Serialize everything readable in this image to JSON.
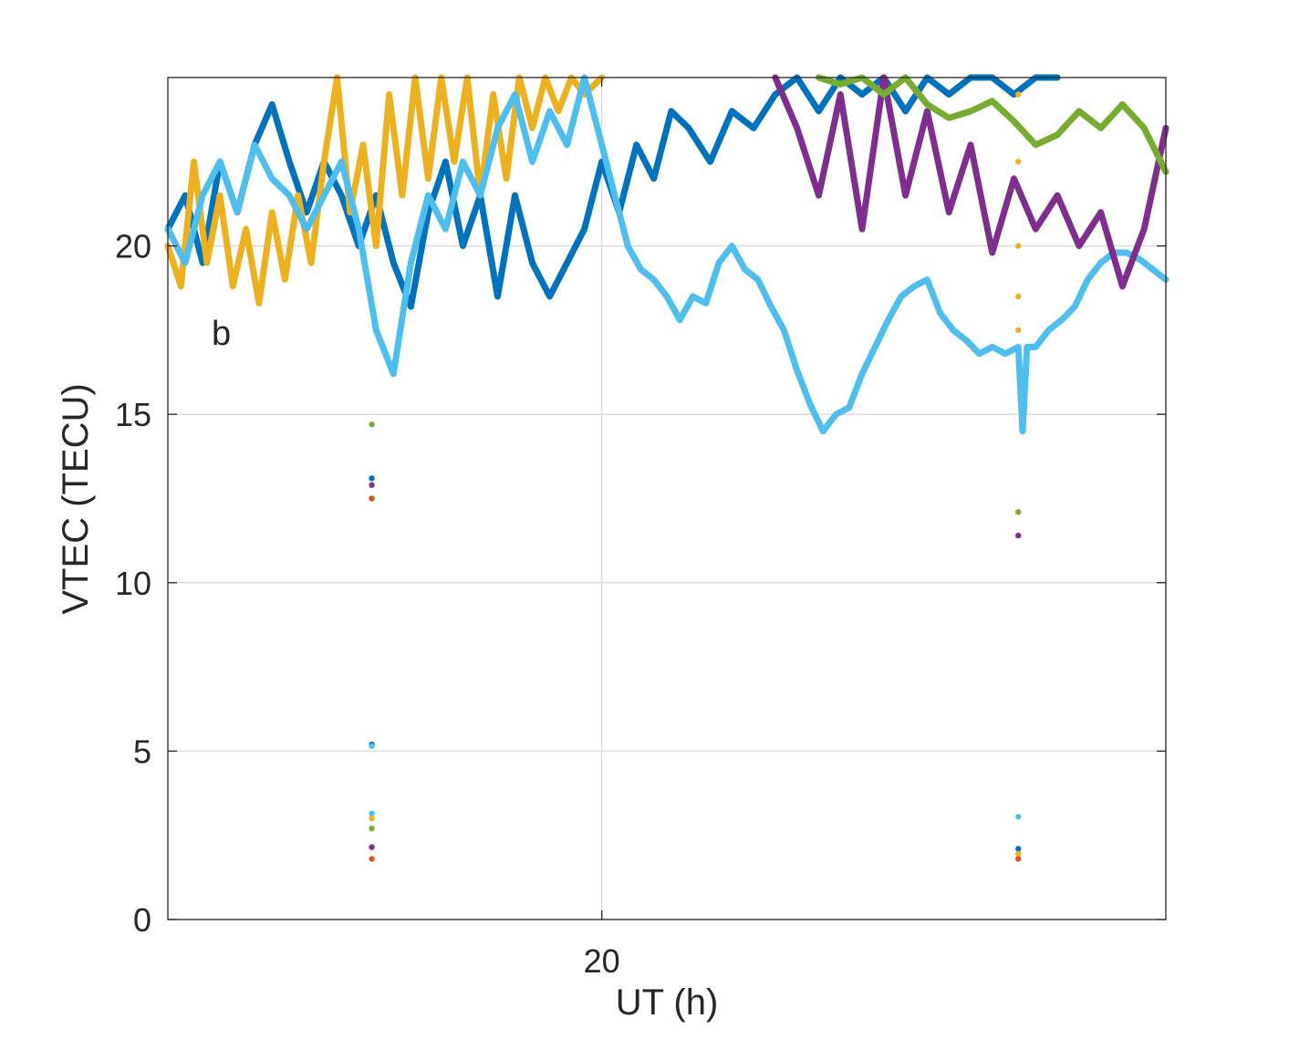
{
  "chart_data": {
    "type": "scatter",
    "title": "",
    "panel_label": "b",
    "xlabel": "UT (h)",
    "ylabel": "VTEC (TECU)",
    "xlim": [
      19,
      21.3
    ],
    "ylim": [
      0,
      25
    ],
    "x_ticks": [
      20
    ],
    "x_tick_labels": [
      "20"
    ],
    "y_ticks": [
      0,
      5,
      10,
      15,
      20
    ],
    "y_tick_labels": [
      "0",
      "5",
      "10",
      "15",
      "20"
    ],
    "grid": true,
    "colors": {
      "blue": "#0072BD",
      "orange": "#D95319",
      "yellow": "#EDB120",
      "purple": "#7E2F8E",
      "green": "#77AC30",
      "cyan": "#4DBEEE"
    },
    "series": [
      {
        "name": "blue",
        "color": "#0072BD",
        "x": [
          19.0,
          19.04,
          19.08,
          19.12,
          19.16,
          19.2,
          19.24,
          19.28,
          19.32,
          19.36,
          19.4,
          19.44,
          19.48,
          19.52,
          19.56,
          19.6,
          19.64,
          19.68,
          19.72,
          19.76,
          19.8,
          19.84,
          19.88,
          19.92,
          19.96,
          20.0,
          20.04,
          20.08,
          20.12,
          20.16,
          20.2,
          20.25,
          20.3,
          20.35,
          20.4,
          20.45,
          20.5,
          20.55,
          20.6,
          20.65,
          20.7,
          20.75,
          20.8,
          20.85,
          20.9,
          20.95,
          21.0,
          21.05
        ],
        "y": [
          20.5,
          21.5,
          19.5,
          22.5,
          21,
          23,
          24.2,
          22.5,
          21,
          22.5,
          21.5,
          20,
          21.5,
          19.5,
          18.2,
          21,
          22.5,
          20,
          21.5,
          18.5,
          21.5,
          19.5,
          18.5,
          19.5,
          20.5,
          22.5,
          21,
          23,
          22,
          24,
          23.5,
          22.5,
          24,
          23.5,
          24.5,
          25,
          24,
          25,
          24.5,
          25,
          24,
          25,
          24.5,
          25,
          25,
          24.5,
          25,
          25
        ]
      },
      {
        "name": "yellow",
        "color": "#EDB120",
        "x": [
          19.0,
          19.03,
          19.06,
          19.09,
          19.12,
          19.15,
          19.18,
          19.21,
          19.24,
          19.27,
          19.3,
          19.33,
          19.36,
          19.39,
          19.42,
          19.45,
          19.48,
          19.51,
          19.54,
          19.57,
          19.6,
          19.63,
          19.66,
          19.69,
          19.72,
          19.75,
          19.78,
          19.81,
          19.84,
          19.87,
          19.9,
          19.93,
          19.96,
          20.0
        ],
        "y": [
          20,
          18.8,
          22.5,
          19.5,
          21.5,
          18.8,
          20.5,
          18.3,
          21,
          19,
          21.5,
          19.5,
          22.5,
          25,
          21,
          23,
          20,
          24.5,
          21.5,
          25,
          22,
          25,
          22.5,
          25,
          21.5,
          24.5,
          22,
          25,
          23.5,
          25,
          24,
          25,
          24.5,
          25
        ]
      },
      {
        "name": "cyan",
        "color": "#4DBEEE",
        "x": [
          19.0,
          19.04,
          19.08,
          19.12,
          19.16,
          19.2,
          19.24,
          19.28,
          19.32,
          19.36,
          19.4,
          19.44,
          19.48,
          19.52,
          19.56,
          19.6,
          19.64,
          19.68,
          19.72,
          19.76,
          19.8,
          19.84,
          19.88,
          19.92,
          19.96,
          20.0,
          20.03,
          20.06,
          20.09,
          20.12,
          20.15,
          20.18,
          20.21,
          20.24,
          20.27,
          20.3,
          20.33,
          20.36,
          20.39,
          20.42,
          20.45,
          20.48,
          20.51,
          20.54,
          20.57,
          20.6,
          20.63,
          20.66,
          20.69,
          20.72,
          20.75,
          20.78,
          20.81,
          20.84,
          20.87,
          20.9,
          20.93,
          20.96,
          20.97,
          20.98,
          21.0,
          21.03,
          21.06,
          21.09,
          21.12,
          21.15,
          21.18,
          21.21,
          21.24,
          21.27,
          21.3
        ],
        "y": [
          20.5,
          19.5,
          21.5,
          22.5,
          21,
          23,
          22,
          21.5,
          20.5,
          21.5,
          22.5,
          20.5,
          17.5,
          16.2,
          19.5,
          21.5,
          20.5,
          22.5,
          21.5,
          23.5,
          24.5,
          22.5,
          24,
          23,
          25,
          23,
          21.5,
          20,
          19.3,
          19,
          18.5,
          17.8,
          18.5,
          18.3,
          19.5,
          20,
          19.3,
          19,
          18.2,
          17.5,
          16.3,
          15.3,
          14.5,
          15,
          15.2,
          16.2,
          17,
          17.8,
          18.5,
          18.8,
          19,
          18,
          17.5,
          17.2,
          16.8,
          17,
          16.8,
          17,
          14.5,
          17,
          17,
          17.5,
          17.8,
          18.2,
          19,
          19.5,
          19.8,
          19.8,
          19.6,
          19.3,
          19
        ]
      },
      {
        "name": "purple",
        "color": "#7E2F8E",
        "x": [
          20.4,
          20.45,
          20.5,
          20.55,
          20.6,
          20.65,
          20.7,
          20.75,
          20.8,
          20.85,
          20.9,
          20.95,
          21.0,
          21.05,
          21.1,
          21.15,
          21.2,
          21.25,
          21.3
        ],
        "y": [
          25,
          23.5,
          21.5,
          24.5,
          20.5,
          25,
          21.5,
          24,
          21,
          23,
          19.8,
          22,
          20.5,
          21.5,
          20,
          21,
          18.8,
          20.5,
          23.5
        ]
      },
      {
        "name": "green",
        "color": "#77AC30",
        "x": [
          20.5,
          20.55,
          20.6,
          20.65,
          20.7,
          20.75,
          20.8,
          20.85,
          20.9,
          20.95,
          21.0,
          21.05,
          21.1,
          21.15,
          21.2,
          21.25,
          21.3
        ],
        "y": [
          25,
          24.8,
          25,
          24.5,
          25,
          24.2,
          23.8,
          24,
          24.3,
          23.7,
          23,
          23.3,
          24,
          23.5,
          24.2,
          23.5,
          22.2
        ]
      }
    ],
    "outliers": [
      {
        "x": 19.47,
        "y": 14.7,
        "color": "#77AC30"
      },
      {
        "x": 19.47,
        "y": 13.1,
        "color": "#0072BD"
      },
      {
        "x": 19.47,
        "y": 12.9,
        "color": "#7E2F8E"
      },
      {
        "x": 19.47,
        "y": 12.5,
        "color": "#D95319"
      },
      {
        "x": 19.47,
        "y": 5.2,
        "color": "#0072BD"
      },
      {
        "x": 19.47,
        "y": 5.15,
        "color": "#4DBEEE"
      },
      {
        "x": 19.47,
        "y": 3.15,
        "color": "#4DBEEE"
      },
      {
        "x": 19.47,
        "y": 3.0,
        "color": "#EDB120"
      },
      {
        "x": 19.47,
        "y": 2.7,
        "color": "#77AC30"
      },
      {
        "x": 19.47,
        "y": 2.15,
        "color": "#7E2F8E"
      },
      {
        "x": 19.47,
        "y": 1.8,
        "color": "#D95319"
      },
      {
        "x": 20.96,
        "y": 12.1,
        "color": "#77AC30"
      },
      {
        "x": 20.96,
        "y": 11.4,
        "color": "#7E2F8E"
      },
      {
        "x": 20.96,
        "y": 3.05,
        "color": "#4DBEEE"
      },
      {
        "x": 20.96,
        "y": 2.1,
        "color": "#0072BD"
      },
      {
        "x": 20.96,
        "y": 1.95,
        "color": "#EDB120"
      },
      {
        "x": 20.96,
        "y": 1.8,
        "color": "#D95319"
      },
      {
        "x": 20.96,
        "y": 24.5,
        "color": "#EDB120"
      },
      {
        "x": 20.96,
        "y": 22.5,
        "color": "#EDB120"
      },
      {
        "x": 20.96,
        "y": 20.0,
        "color": "#EDB120"
      },
      {
        "x": 20.96,
        "y": 18.5,
        "color": "#EDB120"
      },
      {
        "x": 20.96,
        "y": 17.5,
        "color": "#EDB120"
      }
    ]
  }
}
